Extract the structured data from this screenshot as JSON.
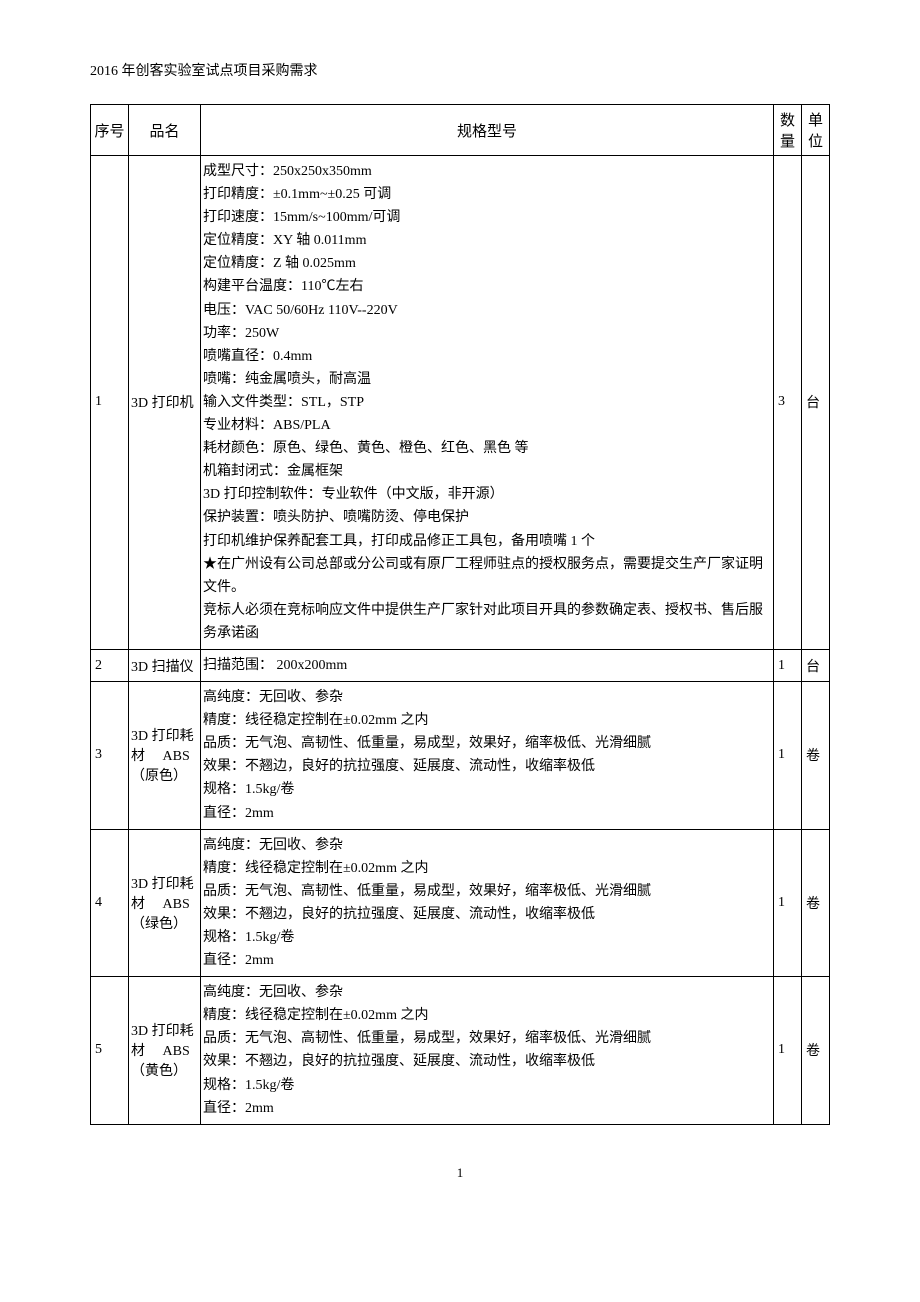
{
  "title": "2016 年创客实验室试点项目采购需求",
  "header": {
    "seq": "序号",
    "name": "品名",
    "spec": "规格型号",
    "qty": "数量",
    "unit": "单位"
  },
  "rows": [
    {
      "seq": "1",
      "name": "3D 打印机",
      "spec": [
        "成型尺寸：250x250x350mm",
        "打印精度：±0.1mm~±0.25 可调",
        "打印速度：15mm/s~100mm/可调",
        "定位精度：XY 轴 0.011mm",
        "定位精度：Z 轴 0.025mm",
        "构建平台温度：110℃左右",
        "电压：VAC 50/60Hz 110V--220V",
        "功率：250W",
        "喷嘴直径：0.4mm",
        "喷嘴：纯金属喷头，耐高温",
        "输入文件类型：STL，STP",
        "专业材料：ABS/PLA",
        "耗材颜色：原色、绿色、黄色、橙色、红色、黑色 等",
        "机箱封闭式：金属框架",
        "3D 打印控制软件：专业软件（中文版，非开源）",
        "保护装置：喷头防护、喷嘴防烫、停电保护",
        "打印机维护保养配套工具，打印成品修正工具包，备用喷嘴 1 个",
        "★在广州设有公司总部或分公司或有原厂工程师驻点的授权服务点，需要提交生产厂家证明文件。",
        "竞标人必须在竞标响应文件中提供生产厂家针对此项目开具的参数确定表、授权书、售后服务承诺函"
      ],
      "qty": "3",
      "unit": "台"
    },
    {
      "seq": "2",
      "name": "3D 扫描仪",
      "spec": [
        "扫描范围：  200x200mm"
      ],
      "qty": "1",
      "unit": "台"
    },
    {
      "seq": "3",
      "name": "3D 打印耗材　 ABS（原色）",
      "spec": [
        "高纯度：无回收、参杂",
        "精度：线径稳定控制在±0.02mm 之内",
        "品质：无气泡、高韧性、低重量，易成型，效果好，缩率极低、光滑细腻",
        "效果：不翘边，良好的抗拉强度、延展度、流动性，收缩率极低",
        "规格：1.5kg/卷",
        "直径：2mm"
      ],
      "qty": "1",
      "unit": "卷"
    },
    {
      "seq": "4",
      "name": "3D 打印耗材　 ABS（绿色）",
      "spec": [
        "高纯度：无回收、参杂",
        "精度：线径稳定控制在±0.02mm 之内",
        "品质：无气泡、高韧性、低重量，易成型，效果好，缩率极低、光滑细腻",
        "效果：不翘边，良好的抗拉强度、延展度、流动性，收缩率极低",
        "规格：1.5kg/卷",
        "直径：2mm"
      ],
      "qty": "1",
      "unit": "卷"
    },
    {
      "seq": "5",
      "name": "3D 打印耗材　 ABS（黄色）",
      "spec": [
        "高纯度：无回收、参杂",
        "精度：线径稳定控制在±0.02mm 之内",
        "品质：无气泡、高韧性、低重量，易成型，效果好，缩率极低、光滑细腻",
        "效果：不翘边，良好的抗拉强度、延展度、流动性，收缩率极低",
        "规格：1.5kg/卷",
        "直径：2mm"
      ],
      "qty": "1",
      "unit": "卷"
    }
  ],
  "pageNumber": "1"
}
